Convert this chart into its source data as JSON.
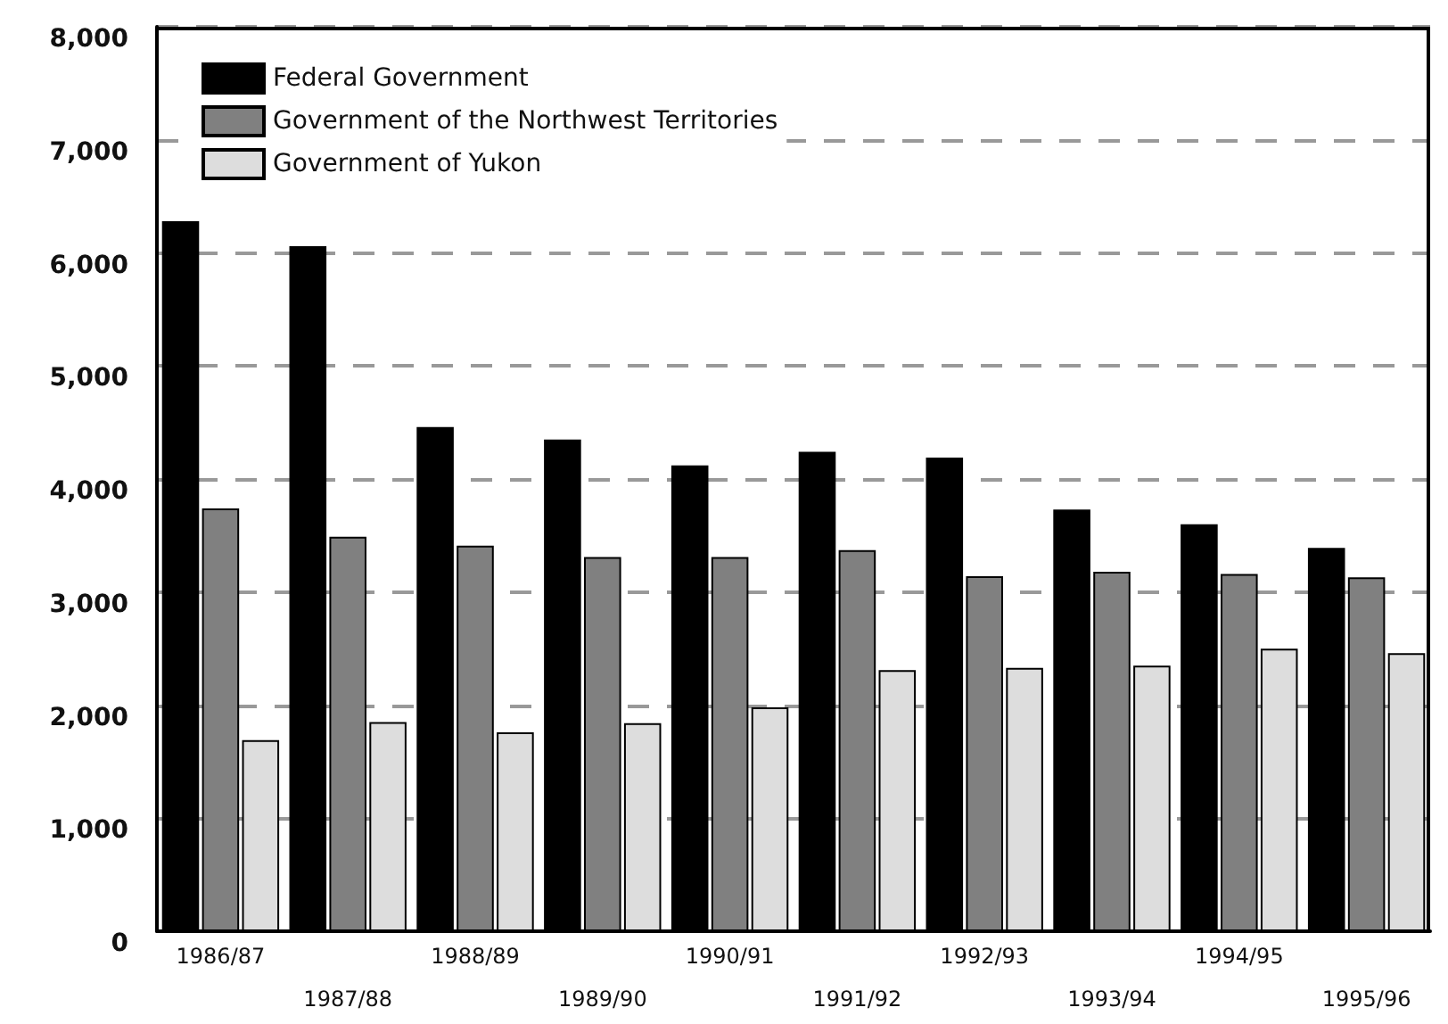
{
  "chart_data": {
    "type": "bar",
    "categories": [
      "1986/87",
      "1987/88",
      "1988/89",
      "1989/90",
      "1990/91",
      "1991/92",
      "1992/93",
      "1993/94",
      "1994/95",
      "1995/96"
    ],
    "series": [
      {
        "name": "Federal Government",
        "color": "#000000",
        "values": [
          6280,
          6060,
          4460,
          4350,
          4120,
          4240,
          4190,
          3730,
          3600,
          3390
        ]
      },
      {
        "name": "Government of the Northwest Territories",
        "color": "#808080",
        "values": [
          3740,
          3490,
          3410,
          3310,
          3310,
          3370,
          3140,
          3180,
          3160,
          3130
        ]
      },
      {
        "name": "Government of Yukon",
        "color": "#dddddd",
        "values": [
          1690,
          1850,
          1760,
          1840,
          1980,
          2310,
          2330,
          2350,
          2500,
          2460
        ]
      }
    ],
    "ylim": [
      0,
      8000
    ],
    "yticks": [
      0,
      {
        "value": 1000,
        "label": "1,000"
      },
      {
        "value": 2000,
        "label": "2,000"
      },
      {
        "value": 3000,
        "label": "3,000"
      },
      {
        "value": 4000,
        "label": "4,000"
      },
      {
        "value": 5000,
        "label": "5,000"
      },
      {
        "value": 6000,
        "label": "6,000"
      },
      {
        "value": 7000,
        "label": "7,000"
      },
      {
        "value": 8000,
        "label": "8,000"
      }
    ],
    "grid": "y",
    "legend": "top left"
  }
}
